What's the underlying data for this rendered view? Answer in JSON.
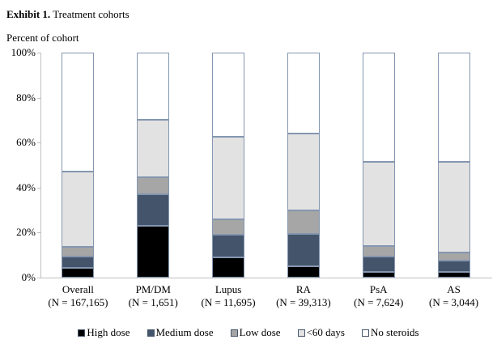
{
  "title": {
    "prefix": "Exhibit 1.",
    "suffix": " Treatment cohorts"
  },
  "axis_caption": "Percent of cohort",
  "chart_data": {
    "type": "bar",
    "stacked": true,
    "title": "Exhibit 1. Treatment cohorts",
    "ylabel": "Percent of cohort",
    "xlabel": "",
    "ylim": [
      0,
      100
    ],
    "yticks": [
      "0%",
      "20%",
      "40%",
      "60%",
      "80%",
      "100%"
    ],
    "grid": false,
    "legend_position": "bottom",
    "categories": [
      "Overall",
      "PM/DM",
      "Lupus",
      "RA",
      "PsA",
      "AS"
    ],
    "category_sublabels": [
      "(N = 167,165)",
      "(N = 1,651)",
      "(N = 11,695)",
      "(N = 39,313)",
      "(N = 7,624)",
      "(N = 3,044)"
    ],
    "series": [
      {
        "name": "High dose",
        "color": "#000000",
        "texture": "none",
        "values": [
          4.5,
          23.0,
          9.0,
          5.0,
          2.5,
          2.5
        ]
      },
      {
        "name": "Medium dose",
        "color": "#44546a",
        "texture": "none",
        "values": [
          5.0,
          14.0,
          10.0,
          14.5,
          7.0,
          5.0
        ]
      },
      {
        "name": "Low dose",
        "color": "#a6a6a6",
        "texture": "none",
        "values": [
          4.0,
          7.5,
          7.0,
          10.5,
          4.5,
          3.5
        ]
      },
      {
        "name": "<60 days",
        "color": "#e3e2e2",
        "texture": "dots",
        "values": [
          33.5,
          25.5,
          36.5,
          34.0,
          37.5,
          40.5
        ]
      },
      {
        "name": "No steroids",
        "color": "#ffffff",
        "texture": "none",
        "values": [
          53.0,
          30.0,
          37.5,
          36.0,
          48.5,
          48.5
        ]
      }
    ],
    "bar_border_color": "#8496b0",
    "axis_color": "#bfbfbf"
  }
}
